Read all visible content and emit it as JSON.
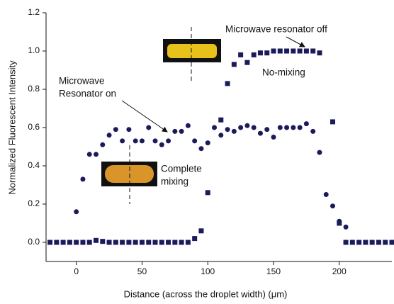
{
  "chart_data": {
    "type": "scatter",
    "xlabel": "Distance (across the droplet width) (μm)",
    "ylabel": "Normalized Fluorescent Intensity",
    "xlim": [
      -23,
      240
    ],
    "ylim": [
      -0.1,
      1.2
    ],
    "xticks": [
      0,
      50,
      100,
      150,
      200
    ],
    "yticks": [
      {
        "value": 0,
        "label": "0.0"
      },
      0.2,
      0.4,
      0.6,
      0.8,
      {
        "value": 1,
        "label": "1.0"
      },
      1.2
    ],
    "annotations": [
      "Microwave resonator off",
      "No-mixing",
      "Microwave",
      "Resonator on",
      "Complete",
      "mixing"
    ],
    "series": [
      {
        "marker": "circle",
        "color": "#1b1b5c",
        "x": [
          0,
          5,
          10,
          15,
          20,
          25,
          30,
          35,
          40,
          45,
          50,
          55,
          60,
          65,
          70,
          75,
          80,
          85,
          90,
          95,
          100,
          105,
          110,
          115,
          120,
          125,
          130,
          135,
          140,
          145,
          150,
          155,
          160,
          165,
          170,
          175,
          180,
          185,
          190,
          195,
          200,
          205
        ],
        "values": [
          0.16,
          0.33,
          0.46,
          0.46,
          0.51,
          0.56,
          0.59,
          0.53,
          0.59,
          0.53,
          0.53,
          0.6,
          0.53,
          0.51,
          0.53,
          0.58,
          0.58,
          0.61,
          0.53,
          0.49,
          0.52,
          0.6,
          0.56,
          0.59,
          0.58,
          0.6,
          0.61,
          0.6,
          0.57,
          0.59,
          0.55,
          0.6,
          0.6,
          0.6,
          0.6,
          0.62,
          0.58,
          0.47,
          0.25,
          0.19,
          0.11,
          0.08
        ]
      },
      {
        "marker": "square",
        "color": "#1b1b5c",
        "x": [
          -20,
          -15,
          -10,
          -5,
          0,
          5,
          10,
          15,
          20,
          25,
          30,
          35,
          40,
          45,
          50,
          55,
          60,
          65,
          70,
          75,
          80,
          85,
          90,
          95,
          100,
          110,
          115,
          120,
          125,
          130,
          135,
          140,
          145,
          150,
          155,
          160,
          165,
          170,
          175,
          180,
          185,
          195,
          200,
          205,
          210,
          215,
          220,
          225,
          230,
          235,
          240
        ],
        "values": [
          0,
          0,
          0,
          0,
          0,
          0,
          0,
          0.01,
          0.005,
          0,
          0,
          0,
          0,
          0,
          0,
          0,
          0,
          0,
          0,
          0,
          0,
          0,
          0.02,
          0.06,
          0.26,
          0.64,
          0.83,
          0.93,
          0.98,
          0.94,
          0.98,
          0.99,
          0.99,
          1.0,
          1.0,
          1.0,
          1.0,
          1.0,
          1.0,
          1.0,
          0.99,
          0.63,
          0.1,
          0,
          0,
          0,
          0,
          0,
          0,
          0,
          0
        ]
      }
    ]
  }
}
